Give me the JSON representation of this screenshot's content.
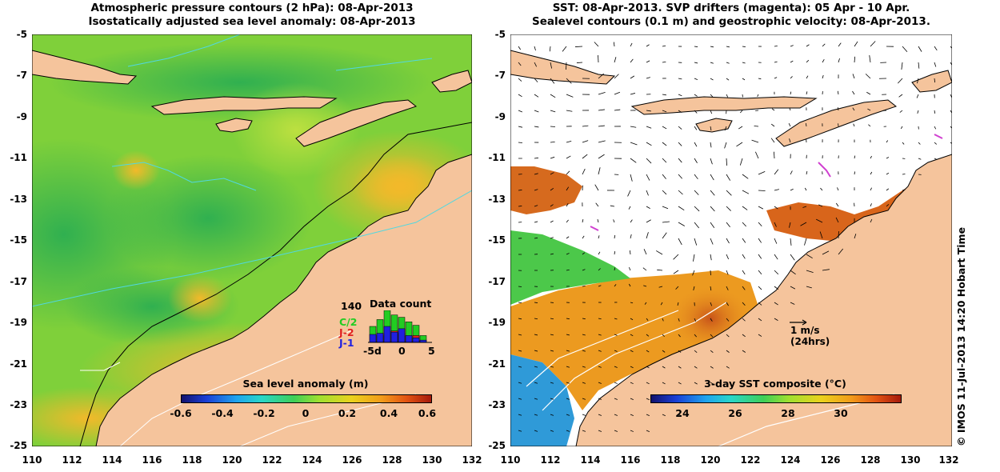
{
  "colors": {
    "land": "#f5c49c",
    "ocean_green": "#3fc24f",
    "ocean_yellow": "#f2b92a",
    "contour_cyan": "#50d8e0",
    "drifter_magenta": "#d040d0",
    "cloud": "#ffffff"
  },
  "left_map": {
    "title_line1": "Atmospheric pressure contours (2 hPa): 08-Apr-2013",
    "title_line2": "Isostatically adjusted sea level anomaly: 08-Apr-2013",
    "colorbar": {
      "title": "Sea level anomaly (m)",
      "ticks": [
        "-0.6",
        "-0.4",
        "-0.2",
        "0",
        "0.2",
        "0.4",
        "0.6"
      ],
      "range": [
        -0.6,
        0.6
      ]
    },
    "data_count": {
      "max_label": "140",
      "title": "Data count",
      "legend": [
        {
          "label": "C/2",
          "color": "#22cc22"
        },
        {
          "label": "J-2",
          "color": "#e02020"
        },
        {
          "label": "J-1",
          "color": "#2020e0"
        }
      ],
      "axis_ticks": [
        "-5d",
        "0",
        "5"
      ],
      "bars": [
        {
          "day": -4,
          "c2": 70,
          "j2": 0,
          "j1": 35
        },
        {
          "day": -3,
          "c2": 100,
          "j2": 30,
          "j1": 40
        },
        {
          "day": -2,
          "c2": 140,
          "j2": 0,
          "j1": 70
        },
        {
          "day": -1,
          "c2": 120,
          "j2": 50,
          "j1": 45
        },
        {
          "day": 0,
          "c2": 110,
          "j2": 40,
          "j1": 60
        },
        {
          "day": 1,
          "c2": 90,
          "j2": 0,
          "j1": 30
        },
        {
          "day": 2,
          "c2": 75,
          "j2": 30,
          "j1": 20
        },
        {
          "day": 3,
          "c2": 30,
          "j2": 0,
          "j1": 10
        }
      ]
    }
  },
  "right_map": {
    "title_line1": "SST: 08-Apr-2013. SVP drifters (magenta): 05 Apr - 10 Apr.",
    "title_line2": "Sealevel contours (0.1 m) and geostrophic velocity: 08-Apr-2013.",
    "colorbar": {
      "title": "3-day SST composite (°C)",
      "ticks": [
        "24",
        "26",
        "28",
        "30"
      ],
      "range": [
        22.5,
        32
      ]
    },
    "velocity_scale": {
      "speed": "1 m/s",
      "duration": "(24hrs)"
    }
  },
  "axes": {
    "lat_ticks": [
      "-5",
      "-7",
      "-9",
      "-11",
      "-13",
      "-15",
      "-17",
      "-19",
      "-21",
      "-23",
      "-25"
    ],
    "lon_ticks": [
      "110",
      "112",
      "114",
      "116",
      "118",
      "120",
      "122",
      "124",
      "126",
      "128",
      "130",
      "132"
    ],
    "lat_range": [
      -5,
      -25
    ],
    "lon_range": [
      110,
      132
    ]
  },
  "credit": "© IMOS 11-Jul-2013 14:20 Hobart Time"
}
